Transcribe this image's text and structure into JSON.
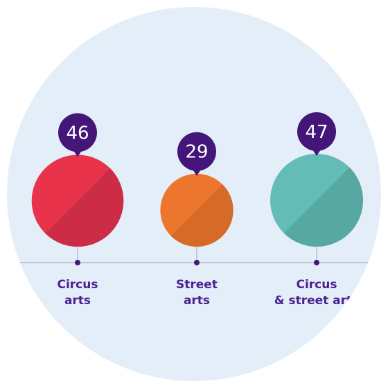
{
  "chart_data": {
    "type": "bubble",
    "categories": [
      "Circus\narts",
      "Street\narts",
      "Circus\n& street arts"
    ],
    "values": [
      46,
      29,
      47
    ],
    "data_labels": [
      "46",
      "29",
      "47"
    ],
    "title": "",
    "xlabel": "",
    "ylabel": "",
    "grid": false,
    "legend": "none",
    "colors": {
      "bubbles": [
        {
          "light": "#e8334a",
          "dark": "#cc2c45"
        },
        {
          "light": "#ed762e",
          "dark": "#d56a29"
        },
        {
          "light": "#63bcb6",
          "dark": "#58a8a2"
        }
      ],
      "pin": "#45167a",
      "axis": "#9e92c6",
      "stem": "#cdc6de",
      "label_text": "#4a2090",
      "background_disc": "#e3eef8",
      "page_background": "#ffffff"
    }
  }
}
